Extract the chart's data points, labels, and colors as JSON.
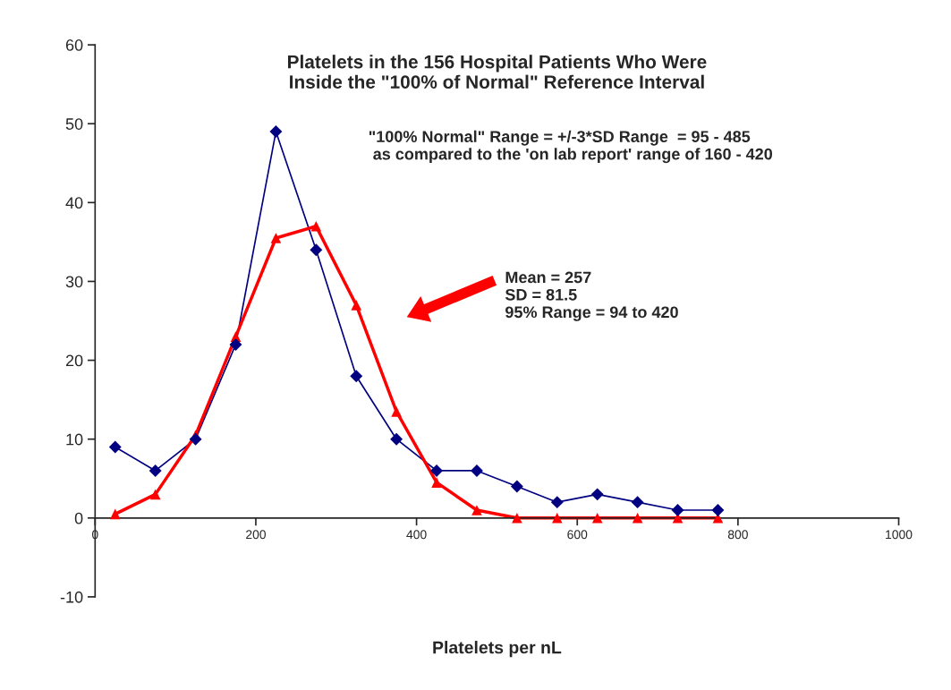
{
  "chart_data": {
    "type": "line",
    "title": "Platelets in the 156 Hospital Patients Who Were\nInside the \"100% of Normal\" Reference Interval",
    "xlabel": "Platelets per nL",
    "x": [
      25,
      75,
      125,
      175,
      225,
      275,
      325,
      375,
      425,
      475,
      525,
      575,
      625,
      675,
      725,
      775
    ],
    "series": [
      {
        "color": "#000080",
        "marker": "diamond",
        "values": [
          9,
          6,
          10,
          22,
          49,
          34,
          18,
          10,
          6,
          6,
          4,
          2,
          3,
          2,
          1,
          1
        ]
      },
      {
        "color": "#ff0000",
        "marker": "triangle",
        "values": [
          0.5,
          3,
          10.5,
          23,
          35.5,
          37,
          27,
          13.5,
          4.5,
          1,
          0,
          0,
          0,
          0,
          0,
          0
        ]
      }
    ],
    "xlim": [
      0,
      1000
    ],
    "xticks": [
      0,
      200,
      400,
      600,
      800,
      1000
    ],
    "ylim": [
      -10,
      60
    ],
    "yticks": [
      -10,
      0,
      10,
      20,
      30,
      40,
      50,
      60
    ],
    "grid": false,
    "legend": false,
    "annotations": [
      "\"100% Normal\" Range = +/-3*SD Range  = 95 - 485\n as compared to the 'on lab report' range of 160 - 420",
      "Mean = 257\nSD = 81.5\n95% Range = 94 to 420"
    ]
  }
}
